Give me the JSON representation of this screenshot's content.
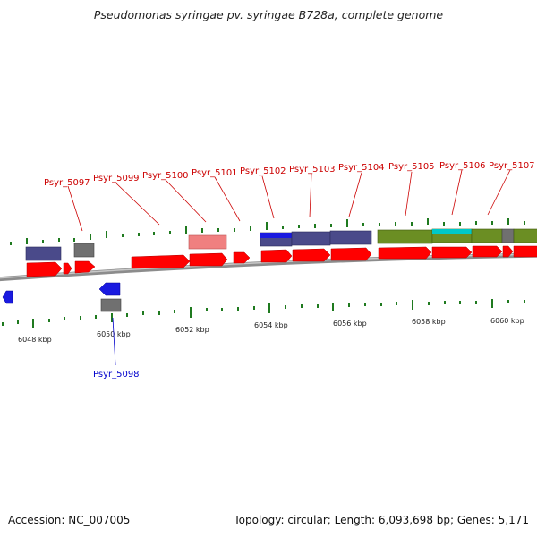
{
  "title": "Pseudomonas syringae pv. syringae B728a, complete genome",
  "footer": {
    "accession": "Accession: NC_007005",
    "summary": "Topology: circular; Length: 6,093,698 bp; Genes: 5,171"
  },
  "colors": {
    "forward_gene": "#ff0000",
    "reverse_gene": "#0000ff",
    "cog_slate": "#4a4a8a",
    "cog_olive": "#6b8e23",
    "cog_gray": "#707070",
    "cog_pink": "#f08080",
    "cog_cyan": "#00c8c8",
    "gc_skew": "#1f7a1f"
  },
  "axis_ticks": [
    "6048 kbp",
    "6050 kbp",
    "6052 kbp",
    "6054 kbp",
    "6056 kbp",
    "6058 kbp",
    "6060 kbp"
  ],
  "gene_labels": [
    {
      "text": "Psyr_5097",
      "strand": "forward"
    },
    {
      "text": "Psyr_5098",
      "strand": "reverse"
    },
    {
      "text": "Psyr_5099",
      "strand": "forward"
    },
    {
      "text": "Psyr_5100",
      "strand": "forward"
    },
    {
      "text": "Psyr_5101",
      "strand": "forward"
    },
    {
      "text": "Psyr_5102",
      "strand": "forward"
    },
    {
      "text": "Psyr_5103",
      "strand": "forward"
    },
    {
      "text": "Psyr_5104",
      "strand": "forward"
    },
    {
      "text": "Psyr_5105",
      "strand": "forward"
    },
    {
      "text": "Psyr_5106",
      "strand": "forward"
    },
    {
      "text": "Psyr_5107",
      "strand": "forward"
    }
  ]
}
